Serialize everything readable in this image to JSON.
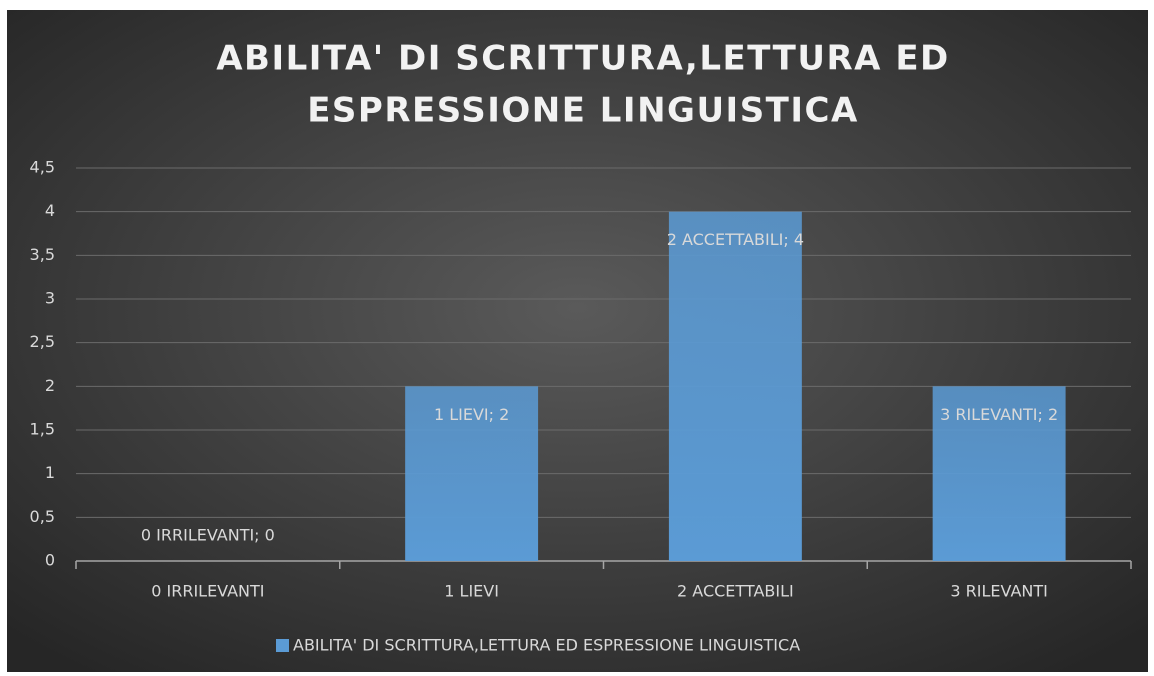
{
  "chart_data": {
    "type": "bar",
    "title": [
      "ABILITA' DI SCRITTURA,LETTURA ED",
      "ESPRESSIONE LINGUISTICA"
    ],
    "categories": [
      "0 IRRILEVANTI",
      "1 LIEVI",
      "2 ACCETTABILI",
      "3 RILEVANTI"
    ],
    "series": [
      {
        "name": "ABILITA' DI SCRITTURA,LETTURA ED ESPRESSIONE LINGUISTICA",
        "color": "#5b9bd5",
        "values": [
          0,
          2,
          4,
          2
        ],
        "value_labels": [
          "0 IRRILEVANTI; 0",
          "1 LIEVI; 2",
          "2 ACCETTABILI; 4",
          "3 RILEVANTI; 2"
        ]
      }
    ],
    "ylim": [
      0,
      4.5
    ],
    "yticks": [
      0,
      {
        "value": 0.5,
        "label": "0,5"
      },
      1,
      {
        "value": 1.5,
        "label": "1,5"
      },
      2,
      {
        "value": 2.5,
        "label": "2,5"
      },
      3,
      {
        "value": 3.5,
        "label": "3,5"
      },
      4,
      {
        "value": 4.5,
        "label": "4,5"
      }
    ],
    "grid": true,
    "legend": "bottom"
  }
}
